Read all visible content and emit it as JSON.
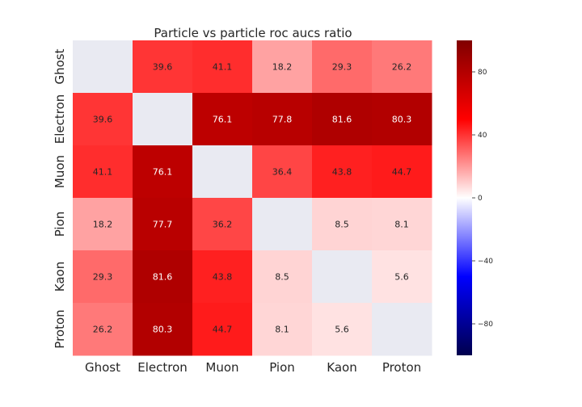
{
  "chart_data": {
    "type": "heatmap",
    "title": "Particle vs particle roc aucs ratio",
    "rows": [
      "Ghost",
      "Electron",
      "Muon",
      "Pion",
      "Kaon",
      "Proton"
    ],
    "cols": [
      "Ghost",
      "Electron",
      "Muon",
      "Pion",
      "Kaon",
      "Proton"
    ],
    "values": [
      [
        null,
        39.6,
        41.1,
        18.2,
        29.3,
        26.2
      ],
      [
        39.6,
        null,
        76.1,
        77.8,
        81.6,
        80.3
      ],
      [
        41.1,
        76.1,
        null,
        36.4,
        43.8,
        44.7
      ],
      [
        18.2,
        77.7,
        36.2,
        null,
        8.5,
        8.1
      ],
      [
        29.3,
        81.6,
        43.8,
        8.5,
        null,
        5.6
      ],
      [
        26.2,
        80.3,
        44.7,
        8.1,
        5.6,
        null
      ]
    ],
    "labels": [
      [
        "",
        "39.6",
        "41.1",
        "18.2",
        "29.3",
        "26.2"
      ],
      [
        "39.6",
        "",
        "76.1",
        "77.8",
        "81.6",
        "80.3"
      ],
      [
        "41.1",
        "76.1",
        "",
        "36.4",
        "43.8",
        "44.7"
      ],
      [
        "18.2",
        "77.7",
        "36.2",
        "",
        "8.5",
        "8.1"
      ],
      [
        "29.3",
        "81.6",
        "43.8",
        "8.5",
        "",
        "5.6"
      ],
      [
        "26.2",
        "80.3",
        "44.7",
        "8.1",
        "5.6",
        ""
      ]
    ],
    "colorbar": {
      "colormap": "seismic",
      "vmin": -100,
      "vmax": 100,
      "ticks": [
        80,
        40,
        0,
        -40,
        -80
      ],
      "tick_labels": [
        "80",
        "40",
        "0",
        "−40",
        "−80"
      ]
    },
    "missing_color": "#e9eaf2"
  }
}
